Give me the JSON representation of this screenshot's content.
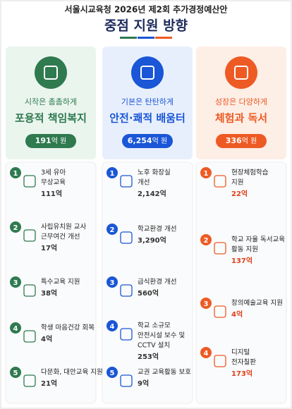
{
  "header": {
    "top": "서울시교육청 2026년 제2회 추가경정예산안",
    "title": "중점 지원 방향"
  },
  "columns": [
    {
      "subtitle": "시작은 촘촘하게",
      "title": "포용적 책임복지",
      "budget": "191",
      "unit": "억 원",
      "items": [
        {
          "number": "1",
          "lines": [
            "3세 유아",
            "무상교육"
          ],
          "amount": "111억"
        },
        {
          "number": "2",
          "lines": [
            "사립유치원 교사",
            "근무여건 개선"
          ],
          "amount": "17억"
        },
        {
          "number": "3",
          "lines": [
            "특수교육 지원"
          ],
          "amount": "38억"
        },
        {
          "number": "4",
          "lines": [
            "학생 마음건강 회복"
          ],
          "amount": "4억"
        },
        {
          "number": "5",
          "lines": [
            "다문화, 대안교육 지원"
          ],
          "amount": "21억"
        }
      ]
    },
    {
      "subtitle": "기본은 탄탄하게",
      "title": "안전·쾌적 배움터",
      "budget": "6,254",
      "unit": "억 원",
      "items": [
        {
          "number": "1",
          "lines": [
            "노후 화장실",
            "개선"
          ],
          "amount": "2,142억"
        },
        {
          "number": "2",
          "lines": [
            "학교환경 개선"
          ],
          "amount": "3,290억"
        },
        {
          "number": "3",
          "lines": [
            "급식환경 개선"
          ],
          "amount": "560억"
        },
        {
          "number": "4",
          "lines": [
            "학교 소규모",
            "안전시설 보수 및",
            "CCTV 설치"
          ],
          "amount": "253억"
        },
        {
          "number": "5",
          "lines": [
            "교권 교육활동 보호"
          ],
          "amount": "9억"
        }
      ]
    },
    {
      "subtitle": "성장은 다양하게",
      "title": "체험과 독서",
      "budget": "336",
      "unit": "억 원",
      "items": [
        {
          "number": "1",
          "lines": [
            "현장체험학습",
            "지원"
          ],
          "amount": "22억"
        },
        {
          "number": "2",
          "lines": [
            "학교 자율 독서교육",
            "활동 지원"
          ],
          "amount": "137억"
        },
        {
          "number": "3",
          "lines": [
            "창의예술교육 지원"
          ],
          "amount": "4억"
        },
        {
          "number": "4",
          "lines": [
            "디지털",
            "전자칠판"
          ],
          "amount": "173억"
        }
      ]
    }
  ]
}
